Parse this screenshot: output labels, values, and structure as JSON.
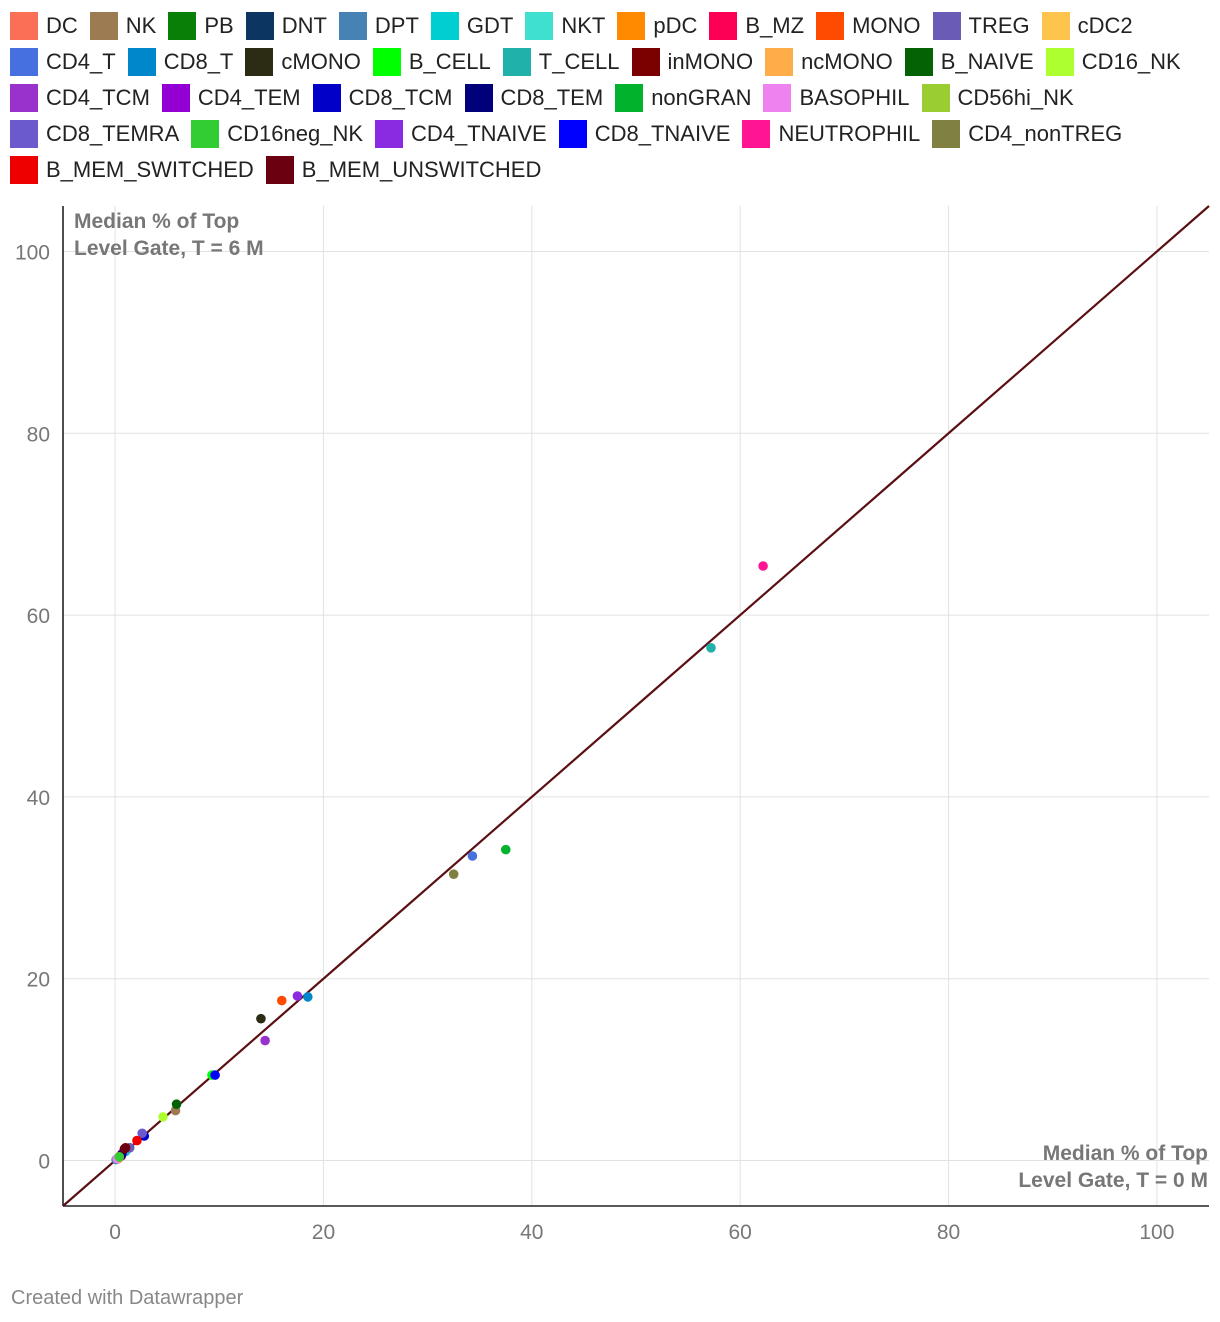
{
  "chart_data": {
    "type": "scatter",
    "title": "",
    "xlabel": "Median % of Top Level Gate, T = 0 M",
    "xlabel_lines": [
      "Median % of Top",
      "Level Gate, T = 0 M"
    ],
    "ylabel": "Median % of Top Level Gate, T = 6 M",
    "ylabel_lines": [
      "Median % of Top",
      "Level Gate, T = 6 M"
    ],
    "xlim": [
      -5,
      105
    ],
    "ylim": [
      -5,
      105
    ],
    "x_ticks": [
      0,
      20,
      40,
      60,
      80,
      100
    ],
    "y_ticks": [
      0,
      20,
      40,
      60,
      80,
      100
    ],
    "grid": true,
    "legend_position": "top",
    "reference_line": {
      "from": [
        -5,
        -5
      ],
      "to": [
        105,
        105
      ],
      "color": "#5a0f12"
    },
    "series": [
      {
        "name": "DC",
        "color": "#fa6f55",
        "points": [
          [
            0.3,
            0.3
          ]
        ]
      },
      {
        "name": "NK",
        "color": "#9c7b52",
        "points": [
          [
            5.8,
            5.5
          ]
        ]
      },
      {
        "name": "PB",
        "color": "#088008",
        "points": [
          [
            0.2,
            0.2
          ]
        ]
      },
      {
        "name": "DNT",
        "color": "#0d3561",
        "points": [
          [
            0.5,
            0.5
          ]
        ]
      },
      {
        "name": "DPT",
        "color": "#4682b4",
        "points": [
          [
            0.1,
            0.1
          ]
        ]
      },
      {
        "name": "GDT",
        "color": "#00ced1",
        "points": [
          [
            1.0,
            1.0
          ]
        ]
      },
      {
        "name": "NKT",
        "color": "#40e0d0",
        "points": [
          [
            1.4,
            1.4
          ]
        ]
      },
      {
        "name": "pDC",
        "color": "#ff8a00",
        "points": [
          [
            0.3,
            0.2
          ]
        ]
      },
      {
        "name": "B_MZ",
        "color": "#fd0055",
        "points": [
          [
            0.6,
            0.5
          ]
        ]
      },
      {
        "name": "MONO",
        "color": "#ff4b00",
        "points": [
          [
            16.0,
            17.6
          ]
        ]
      },
      {
        "name": "TREG",
        "color": "#6a5bb6",
        "points": [
          [
            1.4,
            1.4
          ]
        ]
      },
      {
        "name": "cDC2",
        "color": "#ffc44d",
        "points": [
          [
            0.3,
            0.3
          ]
        ]
      },
      {
        "name": "CD4_T",
        "color": "#4670e0",
        "points": [
          [
            34.3,
            33.5
          ]
        ]
      },
      {
        "name": "CD8_T",
        "color": "#0087cb",
        "points": [
          [
            18.5,
            18.0
          ]
        ]
      },
      {
        "name": "cMONO",
        "color": "#2c2c14",
        "points": [
          [
            14.0,
            15.6
          ]
        ]
      },
      {
        "name": "B_CELL",
        "color": "#00ff00",
        "points": [
          [
            9.3,
            9.4
          ]
        ]
      },
      {
        "name": "T_CELL",
        "color": "#20b2aa",
        "points": [
          [
            57.2,
            56.4
          ]
        ]
      },
      {
        "name": "inMONO",
        "color": "#7b0000",
        "points": [
          [
            1.0,
            1.4
          ]
        ]
      },
      {
        "name": "ncMONO",
        "color": "#ffad48",
        "points": [
          [
            0.5,
            0.6
          ]
        ]
      },
      {
        "name": "B_NAIVE",
        "color": "#046104",
        "points": [
          [
            5.9,
            6.2
          ]
        ]
      },
      {
        "name": "CD16_NK",
        "color": "#adff2f",
        "points": [
          [
            4.6,
            4.8
          ]
        ]
      },
      {
        "name": "CD4_TCM",
        "color": "#9932cc",
        "points": [
          [
            14.4,
            13.2
          ]
        ]
      },
      {
        "name": "CD4_TEM",
        "color": "#9400d3",
        "points": [
          [
            0.7,
            0.8
          ]
        ]
      },
      {
        "name": "CD8_TCM",
        "color": "#0000c8",
        "points": [
          [
            2.8,
            2.7
          ]
        ]
      },
      {
        "name": "CD8_TEM",
        "color": "#00007b",
        "points": [
          [
            0.6,
            0.6
          ]
        ]
      },
      {
        "name": "nonGRAN",
        "color": "#00b22c",
        "points": [
          [
            37.5,
            34.2
          ]
        ]
      },
      {
        "name": "BASOPHIL",
        "color": "#ee82ee",
        "points": [
          [
            0.2,
            0.2
          ]
        ]
      },
      {
        "name": "CD56hi_NK",
        "color": "#9acd32",
        "points": [
          [
            0.4,
            0.4
          ]
        ]
      },
      {
        "name": "CD8_TEMRA",
        "color": "#6a5acd",
        "points": [
          [
            2.6,
            3.0
          ]
        ]
      },
      {
        "name": "CD16neg_NK",
        "color": "#32cd32",
        "points": [
          [
            0.4,
            0.4
          ]
        ]
      },
      {
        "name": "CD4_TNAIVE",
        "color": "#8a2be2",
        "points": [
          [
            17.5,
            18.1
          ]
        ]
      },
      {
        "name": "CD8_TNAIVE",
        "color": "#0000ff",
        "points": [
          [
            9.6,
            9.4
          ]
        ]
      },
      {
        "name": "NEUTROPHIL",
        "color": "#ff1493",
        "points": [
          [
            62.2,
            65.4
          ]
        ]
      },
      {
        "name": "CD4_nonTREG",
        "color": "#808040",
        "points": [
          [
            32.5,
            31.5
          ]
        ]
      },
      {
        "name": "B_MEM_SWITCHED",
        "color": "#ee0000",
        "points": [
          [
            2.1,
            2.2
          ]
        ]
      },
      {
        "name": "B_MEM_UNSWITCHED",
        "color": "#6b0011",
        "points": [
          [
            0.9,
            1.3
          ]
        ]
      }
    ]
  },
  "footer": {
    "credit": "Created with Datawrapper"
  }
}
